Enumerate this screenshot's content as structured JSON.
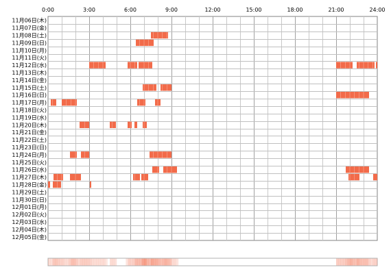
{
  "chart_data": {
    "type": "heatmap",
    "title": "",
    "xlabel": "",
    "ylabel": "",
    "x_ticks": [
      "0:00",
      "3:00",
      "6:00",
      "9:00",
      "12:00",
      "15:00",
      "18:00",
      "21:00",
      "24:00"
    ],
    "x_range_hours": [
      0,
      24
    ],
    "rows": [
      {
        "label": "11月06日(木)",
        "segments": []
      },
      {
        "label": "11月07日(金)",
        "segments": []
      },
      {
        "label": "11月08日(土)",
        "segments": [
          [
            7.5,
            8.75
          ]
        ]
      },
      {
        "label": "11月09日(日)",
        "segments": [
          [
            6.4,
            7.7
          ]
        ]
      },
      {
        "label": "11月10日(月)",
        "segments": []
      },
      {
        "label": "11月11日(火)",
        "segments": []
      },
      {
        "label": "11月12日(水)",
        "segments": [
          [
            3.0,
            4.2
          ],
          [
            5.8,
            6.5
          ],
          [
            6.6,
            7.6
          ],
          [
            21.0,
            22.2
          ],
          [
            22.5,
            23.8
          ],
          [
            23.9,
            24.0
          ]
        ]
      },
      {
        "label": "11月13日(木)",
        "segments": []
      },
      {
        "label": "11月14日(金)",
        "segments": []
      },
      {
        "label": "11月15日(土)",
        "segments": [
          [
            6.9,
            7.9
          ],
          [
            8.2,
            9.0
          ]
        ]
      },
      {
        "label": "11月16日(日)",
        "segments": [
          [
            21.0,
            23.4
          ]
        ]
      },
      {
        "label": "11月17日(月)",
        "segments": [
          [
            0.2,
            0.6
          ],
          [
            1.0,
            2.1
          ],
          [
            6.5,
            7.1
          ],
          [
            7.8,
            8.2
          ]
        ]
      },
      {
        "label": "11月18日(火)",
        "segments": []
      },
      {
        "label": "11月19日(水)",
        "segments": []
      },
      {
        "label": "11月20日(木)",
        "segments": [
          [
            2.3,
            3.0
          ],
          [
            4.5,
            4.95
          ],
          [
            5.8,
            6.1
          ],
          [
            6.3,
            6.5
          ],
          [
            6.9,
            7.2
          ]
        ]
      },
      {
        "label": "11月21日(金)",
        "segments": []
      },
      {
        "label": "11月22日(土)",
        "segments": []
      },
      {
        "label": "11月23日(日)",
        "segments": []
      },
      {
        "label": "11月24日(月)",
        "segments": [
          [
            1.6,
            2.1
          ],
          [
            2.4,
            3.0
          ],
          [
            7.4,
            9.0
          ]
        ]
      },
      {
        "label": "11月25日(火)",
        "segments": []
      },
      {
        "label": "11月26日(水)",
        "segments": [
          [
            7.6,
            8.1
          ],
          [
            8.4,
            9.4
          ],
          [
            21.7,
            23.4
          ]
        ]
      },
      {
        "label": "11月27日(木)",
        "segments": [
          [
            0.4,
            1.1
          ],
          [
            1.6,
            2.4
          ],
          [
            6.2,
            6.7
          ],
          [
            6.8,
            7.3
          ],
          [
            21.9,
            22.7
          ],
          [
            23.7,
            24.0
          ]
        ]
      },
      {
        "label": "11月28日(金)",
        "segments": [
          [
            0.0,
            0.15
          ],
          [
            0.35,
            0.95
          ],
          [
            3.05,
            3.15
          ]
        ]
      },
      {
        "label": "11月29日(土)",
        "segments": []
      },
      {
        "label": "11月30日(日)",
        "segments": []
      },
      {
        "label": "12月01日(月)",
        "segments": []
      },
      {
        "label": "12月02日(火)",
        "segments": []
      },
      {
        "label": "12月03日(水)",
        "segments": []
      },
      {
        "label": "12月04日(木)",
        "segments": []
      },
      {
        "label": "12月05日(金)",
        "segments": []
      }
    ],
    "activity_color": "#f26b4a",
    "activity_edge_color": "#ffd6c8",
    "grid": true,
    "summary_strip": true
  }
}
